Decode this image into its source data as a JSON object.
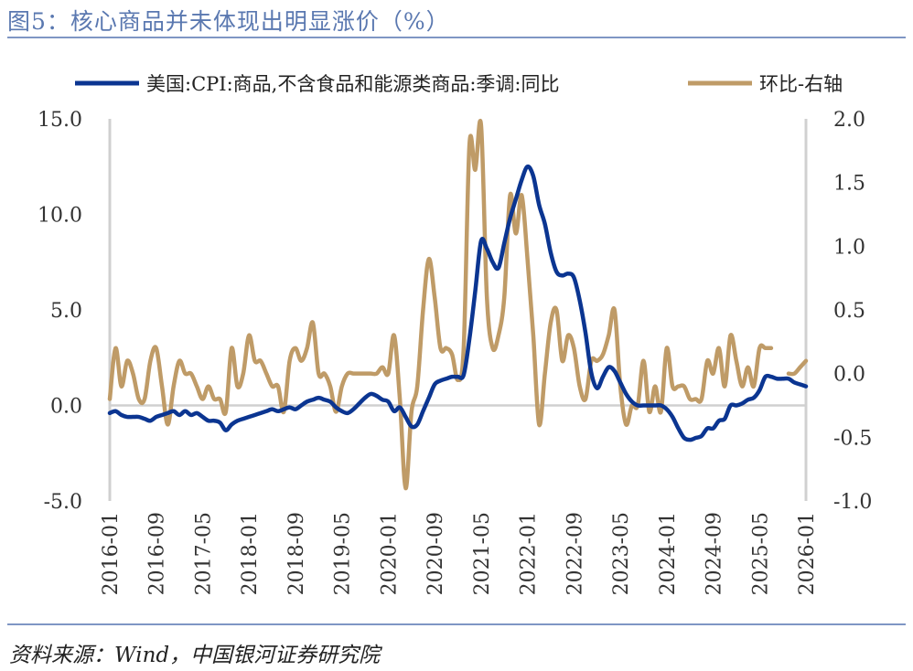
{
  "title": "图5：核心商品并未体现出明显涨价（%）",
  "source": "资料来源：Wind，中国银河证券研究院",
  "chart_data": {
    "type": "line",
    "title": "图5：核心商品并未体现出明显涨价（%）",
    "x_start": "2016-01",
    "x_end": "2026-01",
    "x_frequency": "monthly",
    "x_tick_labels": [
      "2016-01",
      "2016-09",
      "2017-05",
      "2018-01",
      "2018-09",
      "2019-05",
      "2020-01",
      "2020-09",
      "2021-05",
      "2022-01",
      "2022-09",
      "2023-05",
      "2024-01",
      "2024-09",
      "2025-05",
      "2026-01"
    ],
    "y_left": {
      "range": [
        -5,
        15
      ],
      "ticks": [
        "15.0",
        "10.0",
        "5.0",
        "0.0",
        "-5.0"
      ]
    },
    "y_right": {
      "range": [
        -1,
        2
      ],
      "ticks": [
        "2.0",
        "1.5",
        "1.0",
        "0.5",
        "0.0",
        "-0.5",
        "-1.0"
      ]
    },
    "zero_line": true,
    "legend_position": "top",
    "series": [
      {
        "name": "美国:CPI:商品,不含食品和能源类商品:季调:同比",
        "axis": "left",
        "color": "#0b3591",
        "values": [
          -0.4,
          -0.3,
          -0.5,
          -0.6,
          -0.6,
          -0.6,
          -0.7,
          -0.8,
          -0.6,
          -0.5,
          -0.4,
          -0.3,
          -0.5,
          -0.3,
          -0.5,
          -0.4,
          -0.6,
          -0.8,
          -0.8,
          -0.9,
          -1.3,
          -1.0,
          -0.8,
          -0.7,
          -0.6,
          -0.5,
          -0.4,
          -0.3,
          -0.2,
          -0.3,
          -0.2,
          -0.1,
          -0.2,
          0.0,
          0.2,
          0.3,
          0.4,
          0.3,
          0.2,
          -0.1,
          -0.3,
          -0.4,
          -0.2,
          0.1,
          0.4,
          0.6,
          0.5,
          0.3,
          0.2,
          -0.3,
          -0.1,
          -0.6,
          -1.1,
          -1.0,
          -0.3,
          0.4,
          1.1,
          1.3,
          1.4,
          1.5,
          1.5,
          1.6,
          3.5,
          6.0,
          8.6,
          8.2,
          7.5,
          7.2,
          8.5,
          9.8,
          10.8,
          11.8,
          12.5,
          12.0,
          10.5,
          9.5,
          8.0,
          7.0,
          6.8,
          6.9,
          6.7,
          5.5,
          3.8,
          1.7,
          0.9,
          1.5,
          2.0,
          1.8,
          1.2,
          0.6,
          0.2,
          0.0,
          0.0,
          0.0,
          0.0,
          0.0,
          -0.2,
          -0.6,
          -1.2,
          -1.7,
          -1.8,
          -1.7,
          -1.6,
          -1.2,
          -1.2,
          -0.8,
          -0.7,
          0.0,
          0.0,
          0.1,
          0.3,
          0.4,
          0.8,
          1.5,
          1.5,
          1.4,
          1.4,
          1.4,
          1.2,
          1.1,
          1.0
        ]
      },
      {
        "name": "环比-右轴",
        "axis": "right",
        "color": "#bf9b67",
        "values": [
          -0.2,
          0.2,
          -0.1,
          0.1,
          0.0,
          -0.2,
          -0.2,
          0.1,
          0.2,
          -0.1,
          -0.4,
          -0.1,
          0.1,
          0.0,
          0.0,
          -0.1,
          -0.2,
          -0.1,
          -0.2,
          -0.2,
          -0.3,
          0.2,
          -0.1,
          0.0,
          0.3,
          0.1,
          0.1,
          0.0,
          -0.1,
          -0.1,
          -0.3,
          0.1,
          0.2,
          0.1,
          0.2,
          0.4,
          0.0,
          0.0,
          -0.1,
          -0.3,
          -0.1,
          0.0,
          0.0,
          0.0,
          0.0,
          0.0,
          0.0,
          0.05,
          0.0,
          0.3,
          -0.2,
          -0.9,
          -0.3,
          -0.1,
          0.5,
          0.9,
          0.6,
          0.2,
          0.2,
          0.15,
          -0.05,
          0.2,
          1.8,
          1.6,
          1.95,
          0.6,
          0.2,
          0.3,
          0.6,
          1.4,
          1.1,
          1.4,
          0.9,
          0.3,
          -0.4,
          0.0,
          0.4,
          0.5,
          0.1,
          0.3,
          0.2,
          -0.1,
          -0.2,
          0.1,
          0.1,
          0.15,
          0.3,
          0.5,
          -0.1,
          -0.4,
          -0.25,
          -0.25,
          0.1,
          -0.3,
          -0.1,
          -0.3,
          0.2,
          -0.1,
          -0.1,
          -0.1,
          -0.2,
          -0.2,
          -0.2,
          0.1,
          0.0,
          0.2,
          -0.1,
          0.3,
          0.1,
          -0.1,
          0.05,
          -0.1,
          0.2,
          0.2,
          0.2,
          null,
          null,
          0.0,
          0.0,
          0.05,
          0.1
        ]
      }
    ]
  }
}
